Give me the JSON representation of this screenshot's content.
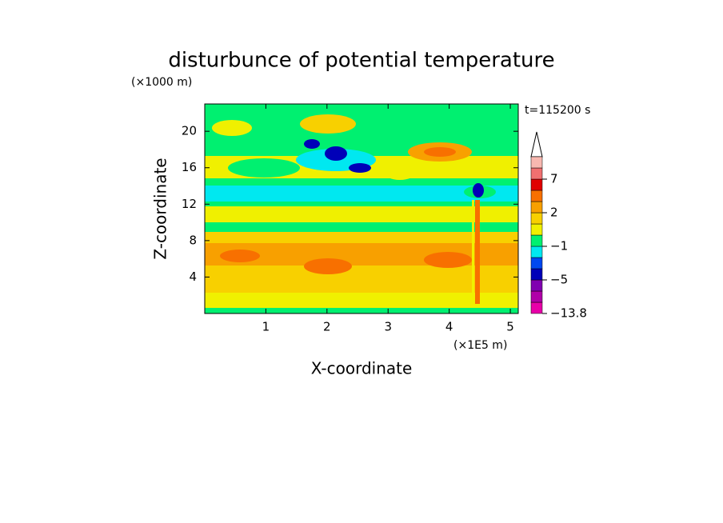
{
  "chart_data": {
    "type": "contour",
    "title": "disturbunce of potential temperature",
    "y_unit": "(×1000 m)",
    "x_unit": "(×1E5 m)",
    "xlabel": "X-coordinate",
    "ylabel": "Z-coordinate",
    "annotation": "t=115200 s",
    "xlim": [
      0,
      5.13
    ],
    "xticks": [
      1,
      2,
      3,
      4,
      5
    ],
    "ylim": [
      0,
      23
    ],
    "yticks": [
      4,
      8,
      12,
      16,
      20
    ],
    "colorbar": {
      "colors": [
        "#e800a8",
        "#b000a8",
        "#8000b0",
        "#0000b8",
        "#0048f0",
        "#00e8f0",
        "#00f070",
        "#f0f000",
        "#f8d000",
        "#f8a000",
        "#f87000",
        "#e00000",
        "#f07070",
        "#f8b8b0"
      ],
      "levels": [
        -13.8,
        -9,
        -7,
        -5,
        -4,
        -2,
        -1,
        0,
        1,
        2,
        3,
        5,
        7,
        9,
        11
      ],
      "ticks": [
        {
          "value": 7,
          "label": "7"
        },
        {
          "value": 2,
          "label": "2"
        },
        {
          "value": -1,
          "label": "−1"
        },
        {
          "value": -5,
          "label": "−5"
        },
        {
          "value": -13.8,
          "label": "−13.8"
        }
      ]
    }
  }
}
